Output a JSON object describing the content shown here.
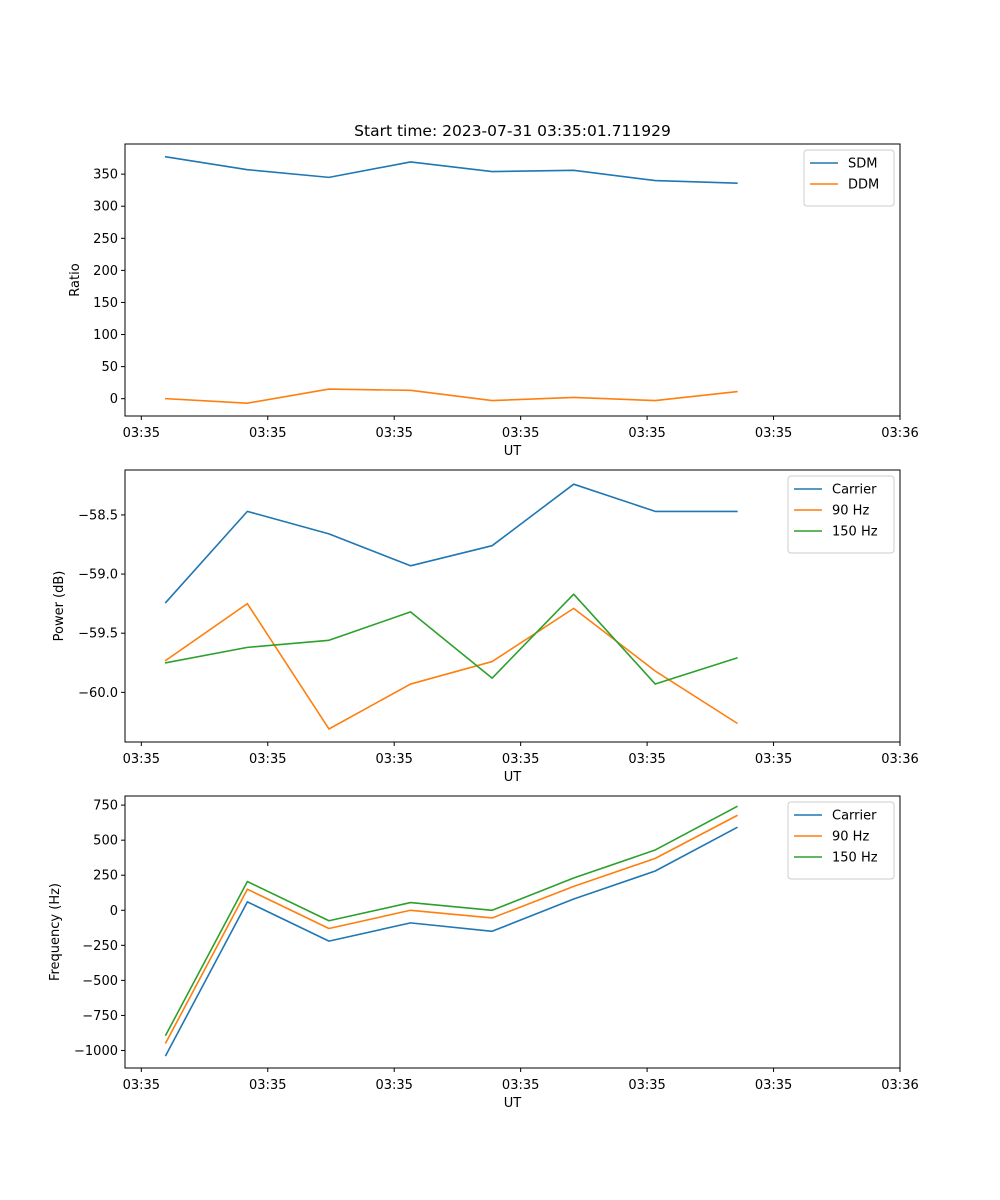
{
  "chart_data": [
    {
      "type": "line",
      "title": "Start time: 2023-07-31 03:35:01.711929",
      "xlabel": "UT",
      "ylabel": "Ratio",
      "xlim": [
        -0.5,
        9.0
      ],
      "ylim": [
        -27,
        397
      ],
      "xticks": [
        {
          "x": -0.3,
          "label": "03:35"
        },
        {
          "x": 1.25,
          "label": "03:35"
        },
        {
          "x": 2.8,
          "label": "03:35"
        },
        {
          "x": 4.35,
          "label": "03:35"
        },
        {
          "x": 5.9,
          "label": "03:35"
        },
        {
          "x": 7.45,
          "label": "03:35"
        },
        {
          "x": 9.0,
          "label": "03:36"
        }
      ],
      "yticks": [
        0,
        50,
        100,
        150,
        200,
        250,
        300,
        350
      ],
      "ytick_labels": [
        "0",
        "50",
        "100",
        "150",
        "200",
        "250",
        "300",
        "350"
      ],
      "legend": "top-right",
      "x": [
        0,
        1,
        2,
        3,
        4,
        5,
        6,
        7
      ],
      "series": [
        {
          "name": "SDM",
          "color": "#1f77b4",
          "values": [
            377,
            357,
            345,
            369,
            354,
            356,
            340,
            336
          ]
        },
        {
          "name": "DDM",
          "color": "#ff7f0e",
          "values": [
            0,
            -7,
            15,
            13,
            -3,
            2,
            -3,
            11
          ]
        }
      ]
    },
    {
      "type": "line",
      "title": "",
      "xlabel": "UT",
      "ylabel": "Power (dB)",
      "xlim": [
        -0.5,
        9.0
      ],
      "ylim": [
        -60.42,
        -58.12
      ],
      "xticks": [
        {
          "x": -0.3,
          "label": "03:35"
        },
        {
          "x": 1.25,
          "label": "03:35"
        },
        {
          "x": 2.8,
          "label": "03:35"
        },
        {
          "x": 4.35,
          "label": "03:35"
        },
        {
          "x": 5.9,
          "label": "03:35"
        },
        {
          "x": 7.45,
          "label": "03:35"
        },
        {
          "x": 9.0,
          "label": "03:36"
        }
      ],
      "yticks": [
        -60.0,
        -59.5,
        -59.0,
        -58.5
      ],
      "ytick_labels": [
        "−60.0",
        "−59.5",
        "−59.0",
        "−58.5"
      ],
      "legend": "top-right",
      "x": [
        0,
        1,
        2,
        3,
        4,
        5,
        6,
        7
      ],
      "series": [
        {
          "name": "Carrier",
          "color": "#1f77b4",
          "values": [
            -59.24,
            -58.47,
            -58.66,
            -58.93,
            -58.76,
            -58.24,
            -58.47,
            -58.47
          ]
        },
        {
          "name": "90 Hz",
          "color": "#ff7f0e",
          "values": [
            -59.73,
            -59.25,
            -60.31,
            -59.93,
            -59.74,
            -59.29,
            -59.82,
            -60.26
          ]
        },
        {
          "name": "150 Hz",
          "color": "#2ca02c",
          "values": [
            -59.75,
            -59.62,
            -59.56,
            -59.32,
            -59.88,
            -59.17,
            -59.93,
            -59.71
          ]
        }
      ]
    },
    {
      "type": "line",
      "title": "",
      "xlabel": "UT",
      "ylabel": "Frequency (Hz)",
      "xlim": [
        -0.5,
        9.0
      ],
      "ylim": [
        -1125,
        815
      ],
      "xticks": [
        {
          "x": -0.3,
          "label": "03:35"
        },
        {
          "x": 1.25,
          "label": "03:35"
        },
        {
          "x": 2.8,
          "label": "03:35"
        },
        {
          "x": 4.35,
          "label": "03:35"
        },
        {
          "x": 5.9,
          "label": "03:35"
        },
        {
          "x": 7.45,
          "label": "03:35"
        },
        {
          "x": 9.0,
          "label": "03:36"
        }
      ],
      "yticks": [
        -1000,
        -750,
        -500,
        -250,
        0,
        250,
        500,
        750
      ],
      "ytick_labels": [
        "−1000",
        "−750",
        "−500",
        "−250",
        "0",
        "250",
        "500",
        "750"
      ],
      "legend": "top-right",
      "x": [
        0,
        1,
        2,
        3,
        4,
        5,
        6,
        7
      ],
      "series": [
        {
          "name": "Carrier",
          "color": "#1f77b4",
          "values": [
            -1035,
            60,
            -220,
            -90,
            -150,
            80,
            280,
            590
          ]
        },
        {
          "name": "90 Hz",
          "color": "#ff7f0e",
          "values": [
            -945,
            150,
            -130,
            0,
            -55,
            170,
            370,
            675
          ]
        },
        {
          "name": "150 Hz",
          "color": "#2ca02c",
          "values": [
            -890,
            205,
            -75,
            55,
            0,
            230,
            430,
            740
          ]
        }
      ]
    }
  ]
}
